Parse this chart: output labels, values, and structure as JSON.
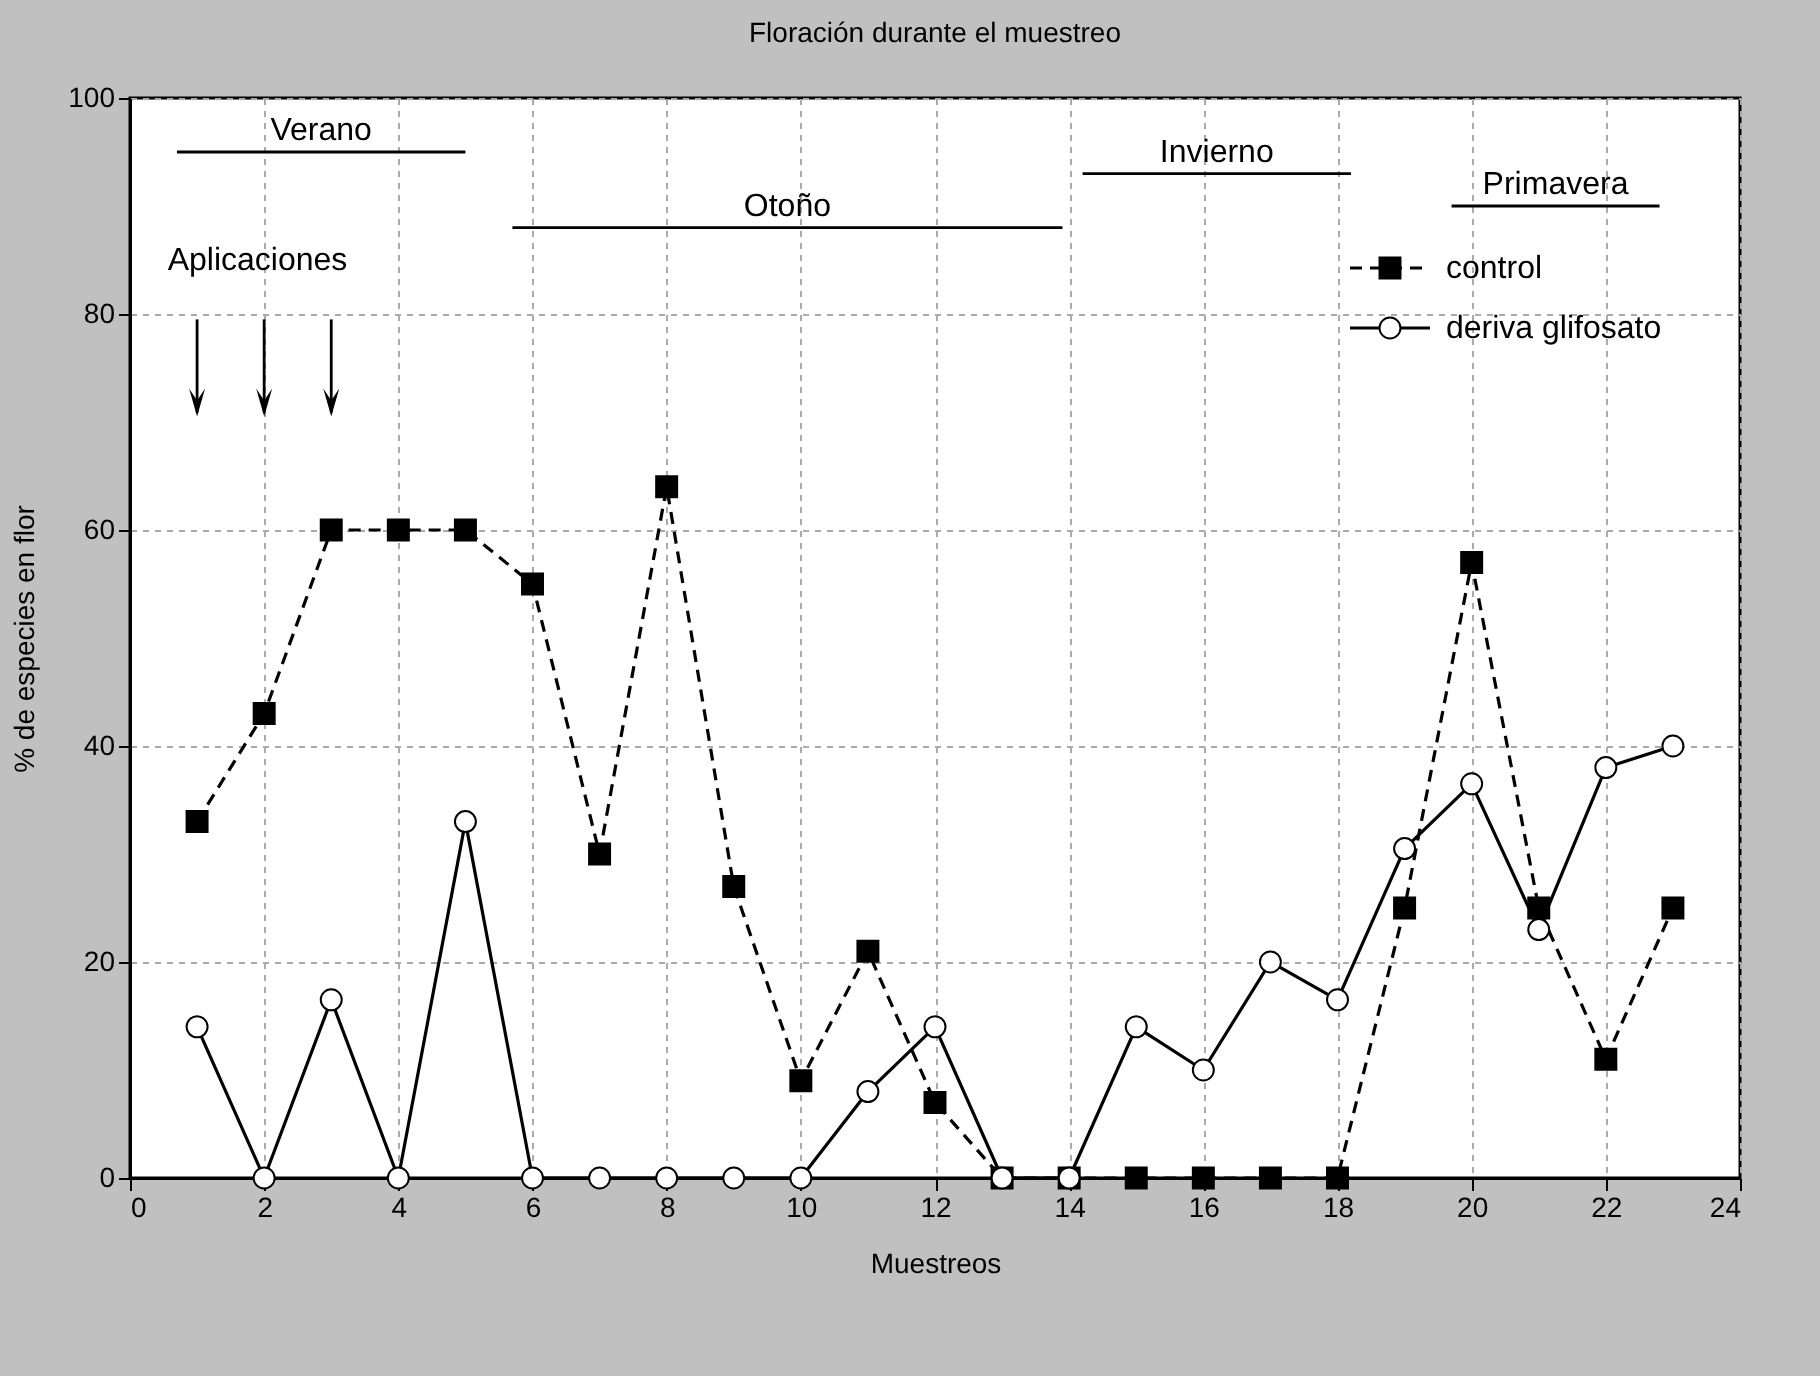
{
  "chart_data": {
    "type": "line",
    "title": "Floración durante el muestreo",
    "xlabel": "Muestreos",
    "ylabel": "% de especies en flor",
    "x": [
      1,
      2,
      3,
      4,
      5,
      6,
      7,
      8,
      9,
      10,
      11,
      12,
      13,
      14,
      15,
      16,
      17,
      18,
      19,
      20,
      21,
      22,
      23
    ],
    "series": [
      {
        "name": "control",
        "color": "#000000",
        "marker": "square",
        "line_style": "dashed",
        "values": [
          33,
          43,
          60,
          60,
          60,
          55,
          30,
          64,
          27,
          9,
          21,
          7,
          0,
          0,
          0,
          0,
          0,
          0,
          25,
          57,
          25,
          11,
          25
        ]
      },
      {
        "name": "deriva glifosato",
        "color": "#000000",
        "marker": "circle",
        "line_style": "solid",
        "values": [
          14,
          0,
          16.5,
          0,
          33,
          0,
          0,
          0,
          0,
          0,
          8,
          14,
          0,
          0,
          14,
          10,
          20,
          16.5,
          30.5,
          36.5,
          23,
          38,
          40
        ]
      }
    ],
    "xlim": [
      0,
      24
    ],
    "xticks": [
      0,
      2,
      4,
      6,
      8,
      10,
      12,
      14,
      16,
      18,
      20,
      22,
      24
    ],
    "ylim": [
      0,
      100
    ],
    "yticks": [
      0,
      20,
      40,
      60,
      80,
      100
    ],
    "grid": true,
    "legend": "top right",
    "annotations": [
      "Verano",
      "Otoño",
      "Invierno",
      "Primavera",
      "Aplicaciones"
    ]
  }
}
